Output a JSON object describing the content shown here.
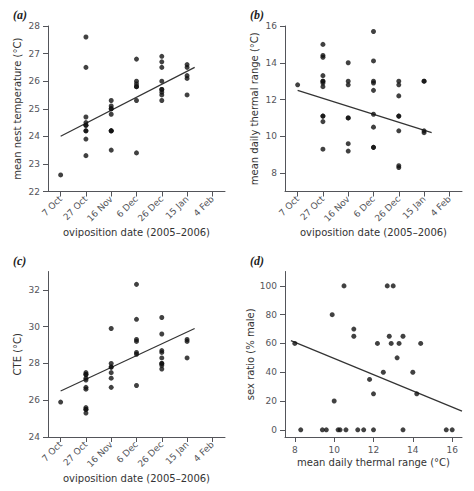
{
  "chart_data": [
    {
      "type": "scatter",
      "title": "(a)",
      "xlabel": "oviposition date (2005–2006)",
      "ylabel": "mean nest temperature (°C)",
      "xlim": [
        0.5,
        7.5
      ],
      "xticks": [
        {
          "value": 1,
          "label": "7 Oct"
        },
        {
          "value": 2,
          "label": "27 Oct"
        },
        {
          "value": 3,
          "label": "16 Nov"
        },
        {
          "value": 4,
          "label": "6 Dec"
        },
        {
          "value": 5,
          "label": "26 Dec"
        },
        {
          "value": 6,
          "label": "15 Jan"
        },
        {
          "value": 7,
          "label": "4 Feb"
        }
      ],
      "ylim": [
        22,
        28
      ],
      "yticks": [
        22,
        23,
        24,
        25,
        26,
        27,
        28
      ],
      "grid": false,
      "series": [
        {
          "type": "scatter",
          "color": "#111111",
          "x": [
            1,
            2,
            2,
            2,
            2,
            2,
            2,
            2,
            2,
            2,
            2,
            3,
            3,
            3,
            3,
            3,
            3,
            3,
            3,
            3,
            4,
            4,
            4,
            4,
            4,
            4,
            4,
            5,
            5,
            5,
            5,
            5,
            5,
            5,
            5,
            5,
            6,
            6,
            6,
            6,
            6
          ],
          "values": [
            22.6,
            26.5,
            24.7,
            24.4,
            24.4,
            24.5,
            24.2,
            24.2,
            23.9,
            23.3,
            27.6,
            25.1,
            24.8,
            25.0,
            25.0,
            25.3,
            24.2,
            24.2,
            23.5,
            24.2,
            26.0,
            25.8,
            25.8,
            25.9,
            26.8,
            25.3,
            23.4,
            25.5,
            25.6,
            26.0,
            25.7,
            26.7,
            25.3,
            26.9,
            25.7,
            26.5,
            26.5,
            26.6,
            26.1,
            26.2,
            25.5
          ]
        },
        {
          "type": "line",
          "color": "#333333",
          "x": [
            1.0,
            6.3
          ],
          "values": [
            24.0,
            26.5
          ]
        }
      ]
    },
    {
      "type": "scatter",
      "title": "(b)",
      "xlabel": "oviposition date (2005–2006)",
      "ylabel": "mean daily thermal range (°C)",
      "xlim": [
        0.5,
        7.5
      ],
      "xticks": [
        {
          "value": 1,
          "label": "7 Oct"
        },
        {
          "value": 2,
          "label": "27 Oct"
        },
        {
          "value": 3,
          "label": "16 Nov"
        },
        {
          "value": 4,
          "label": "6 Dec"
        },
        {
          "value": 5,
          "label": "26 Dec"
        },
        {
          "value": 6,
          "label": "15 Jan"
        },
        {
          "value": 7,
          "label": "4 Feb"
        }
      ],
      "ylim": [
        7,
        16
      ],
      "yticks": [
        8,
        10,
        12,
        14,
        16
      ],
      "grid": false,
      "series": [
        {
          "type": "scatter",
          "color": "#111111",
          "x": [
            1,
            2,
            2,
            2,
            2,
            2,
            2,
            2,
            2,
            2,
            2,
            2,
            2,
            3,
            3,
            3,
            3,
            3,
            3,
            3,
            4,
            4,
            4,
            4,
            4,
            4,
            4,
            4,
            4,
            5,
            5,
            5,
            5,
            5,
            5,
            5,
            5,
            6,
            6,
            6,
            6
          ],
          "values": [
            12.8,
            15.0,
            14.3,
            14.4,
            13.3,
            13.0,
            13.0,
            12.9,
            12.7,
            11.1,
            11.1,
            10.8,
            9.3,
            14.0,
            13.0,
            12.8,
            11.0,
            11.0,
            9.6,
            9.2,
            15.7,
            14.1,
            13.0,
            12.9,
            12.5,
            11.2,
            10.5,
            9.4,
            9.4,
            13.0,
            12.8,
            12.2,
            11.1,
            11.1,
            10.3,
            8.4,
            8.3,
            13.0,
            13.0,
            10.3,
            10.2
          ]
        },
        {
          "type": "line",
          "color": "#333333",
          "x": [
            1.0,
            6.3
          ],
          "values": [
            12.5,
            10.2
          ]
        }
      ]
    },
    {
      "type": "scatter",
      "title": "(c)",
      "xlabel": "oviposition date (2005–2006)",
      "ylabel": "CTE (°C)",
      "xlim": [
        0.5,
        7.5
      ],
      "xticks": [
        {
          "value": 1,
          "label": "7 Oct"
        },
        {
          "value": 2,
          "label": "27 Oct"
        },
        {
          "value": 3,
          "label": "16 Nov"
        },
        {
          "value": 4,
          "label": "6 Dec"
        },
        {
          "value": 5,
          "label": "26 Dec"
        },
        {
          "value": 6,
          "label": "15 Jan"
        },
        {
          "value": 7,
          "label": "4 Feb"
        }
      ],
      "ylim": [
        24,
        33
      ],
      "yticks": [
        24,
        26,
        28,
        30,
        32
      ],
      "grid": false,
      "series": [
        {
          "type": "scatter",
          "color": "#111111",
          "x": [
            1,
            2,
            2,
            2,
            2,
            2,
            2,
            2,
            2,
            2,
            2,
            2,
            3,
            3,
            3,
            3,
            3,
            3,
            3,
            4,
            4,
            4,
            4,
            4,
            4,
            4,
            5,
            5,
            5,
            5,
            5,
            5,
            5,
            5,
            5,
            6,
            6,
            6
          ],
          "values": [
            25.9,
            27.5,
            27.4,
            27.4,
            27.2,
            27.1,
            26.7,
            26.6,
            25.6,
            25.5,
            25.5,
            25.3,
            29.9,
            28.0,
            27.8,
            27.8,
            27.5,
            27.2,
            26.7,
            32.3,
            30.4,
            29.3,
            29.2,
            28.6,
            28.5,
            26.8,
            29.6,
            28.6,
            28.0,
            28.7,
            28.0,
            27.9,
            27.7,
            30.5,
            28.3,
            29.3,
            29.2,
            28.3
          ]
        },
        {
          "type": "line",
          "color": "#333333",
          "x": [
            1.0,
            6.3
          ],
          "values": [
            26.5,
            29.9
          ]
        }
      ]
    },
    {
      "type": "scatter",
      "title": "(d)",
      "xlabel": "mean daily thermal range (°C)",
      "ylabel": "sex ratio (% male)",
      "xlim": [
        7.5,
        16.5
      ],
      "xticks": [
        8,
        10,
        12,
        14,
        16
      ],
      "ylim": [
        -5,
        110
      ],
      "yticks": [
        0,
        20,
        40,
        60,
        80,
        100
      ],
      "grid": false,
      "series": [
        {
          "type": "scatter",
          "color": "#111111",
          "x": [
            8.0,
            8.3,
            9.4,
            9.6,
            9.9,
            10.0,
            10.2,
            10.3,
            10.5,
            10.6,
            11.0,
            11.0,
            11.2,
            11.5,
            11.8,
            12.0,
            12.0,
            12.2,
            12.5,
            12.7,
            12.8,
            12.9,
            13.0,
            13.2,
            13.3,
            13.5,
            13.5,
            14.0,
            14.2,
            14.4,
            15.7,
            16.0
          ],
          "values": [
            60,
            0,
            0,
            0,
            80,
            20,
            0,
            0,
            100,
            0,
            65,
            70,
            0,
            0,
            35,
            25,
            0,
            60,
            40,
            100,
            65,
            60,
            100,
            50,
            60,
            0,
            65,
            40,
            25,
            60,
            0,
            0
          ]
        },
        {
          "type": "line",
          "color": "#333333",
          "x": [
            7.8,
            16.5
          ],
          "values": [
            62,
            13
          ]
        }
      ]
    }
  ]
}
